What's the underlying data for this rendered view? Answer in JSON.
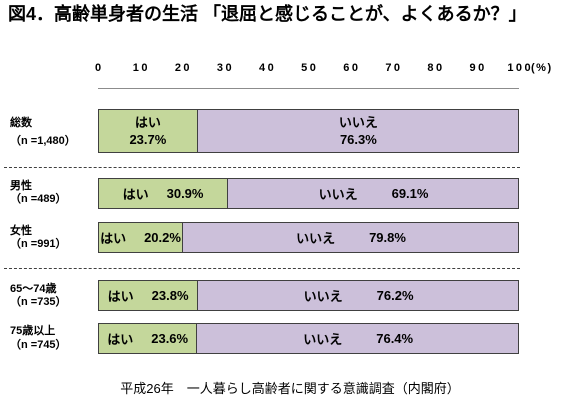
{
  "chart_data": {
    "type": "bar",
    "orientation": "horizontal",
    "stacked": true,
    "title": "図4．高齢単身者の生活 「退屈と感じることが、よくあるか？」",
    "source_note": "平成26年　一人暮らし高齢者に関する意識調査（内閣府）",
    "xaxis": {
      "position": "top",
      "range": [
        0,
        100
      ],
      "ticks": [
        0,
        10,
        20,
        30,
        40,
        50,
        60,
        70,
        80,
        90,
        100
      ],
      "unit": "(%)"
    },
    "grid": false,
    "value_suffix": "%",
    "categories": [
      {
        "label": "総数",
        "n_label": "（n =1,480）"
      },
      {
        "label": "男性",
        "n_label": "（n =489）"
      },
      {
        "label": "女性",
        "n_label": "（n =991）"
      },
      {
        "label": "65〜74歳",
        "n_label": "（n =735）"
      },
      {
        "label": "75歳以上",
        "n_label": "（n =745）"
      }
    ],
    "series": [
      {
        "name": "はい",
        "color": "#c4d79b",
        "values": [
          23.7,
          30.9,
          20.2,
          23.8,
          23.6
        ]
      },
      {
        "name": "いいえ",
        "color": "#ccc0da",
        "values": [
          76.3,
          69.1,
          79.8,
          76.2,
          76.4
        ]
      }
    ]
  }
}
